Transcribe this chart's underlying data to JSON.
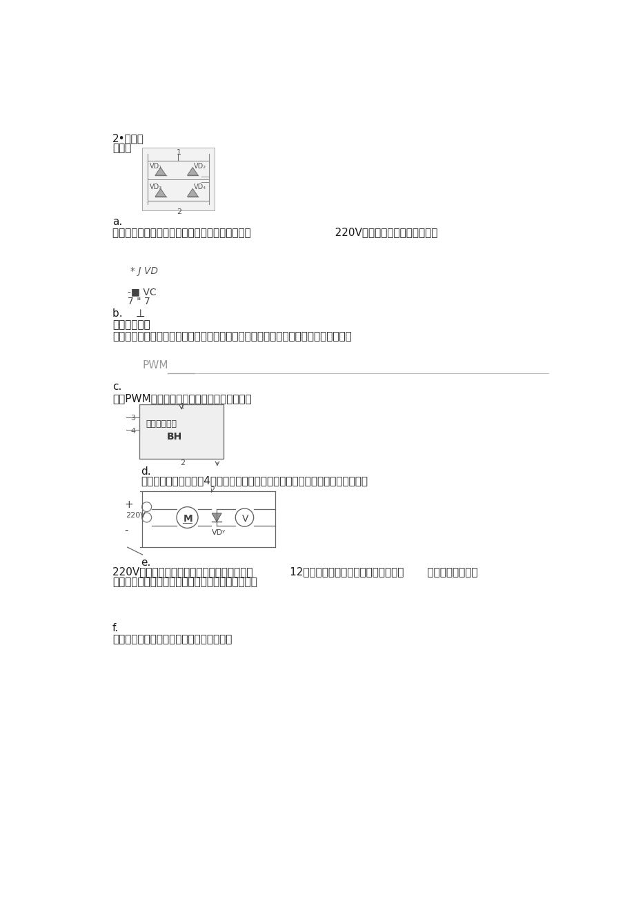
{
  "bg_color": "#ffffff",
  "text_color": "#1a1a1a",
  "gray_color": "#888888",
  "light_gray": "#bbbbbb",
  "title1": "2•电路结",
  "title2": "构分析",
  "label_a": "a.",
  "text_a": "四个二极管实现线路整流，将接在零线和母线上的                         220V交流电压转换为直流电压。",
  "label_jvd": "* J VD",
  "label_vc": "-■ VC",
  "label_77": "7 \" 7",
  "label_b": "b.    ⊥",
  "text_b1": "电容滤波电路",
  "text_b2": "由四个二极管整流得到的直流电压为脉动直流，通过电容滤波电路可以使直流更加平稳",
  "label_pwm": "PWM",
  "label_c": "c.",
  "text_c": "产生PWM波，提供占空比不同的门极触发信号",
  "label_d": "d.",
  "text_d1": "过流保护电路，一共有4个接头，分别用在触发电路和主电路中，起限流保护作用",
  "box_d_text1": "过流保护电路",
  "box_d_text2": "BH",
  "label_e": "e.",
  "text_e1": "220V为他励电动机励磁电压，提供励磁电流。           12之间的二极管为快速二极管，在于关       肟器件短路期间起",
  "text_e2": "到放电的作用，线路中电压表测量电枢绕组两端电压",
  "label_f": "f.",
  "text_f": "电流表放在主回路中主要起保护和监视作用",
  "motor_label": "220V",
  "motor_m": "M",
  "motor_vd": "VDʸ",
  "motor_v": "V"
}
